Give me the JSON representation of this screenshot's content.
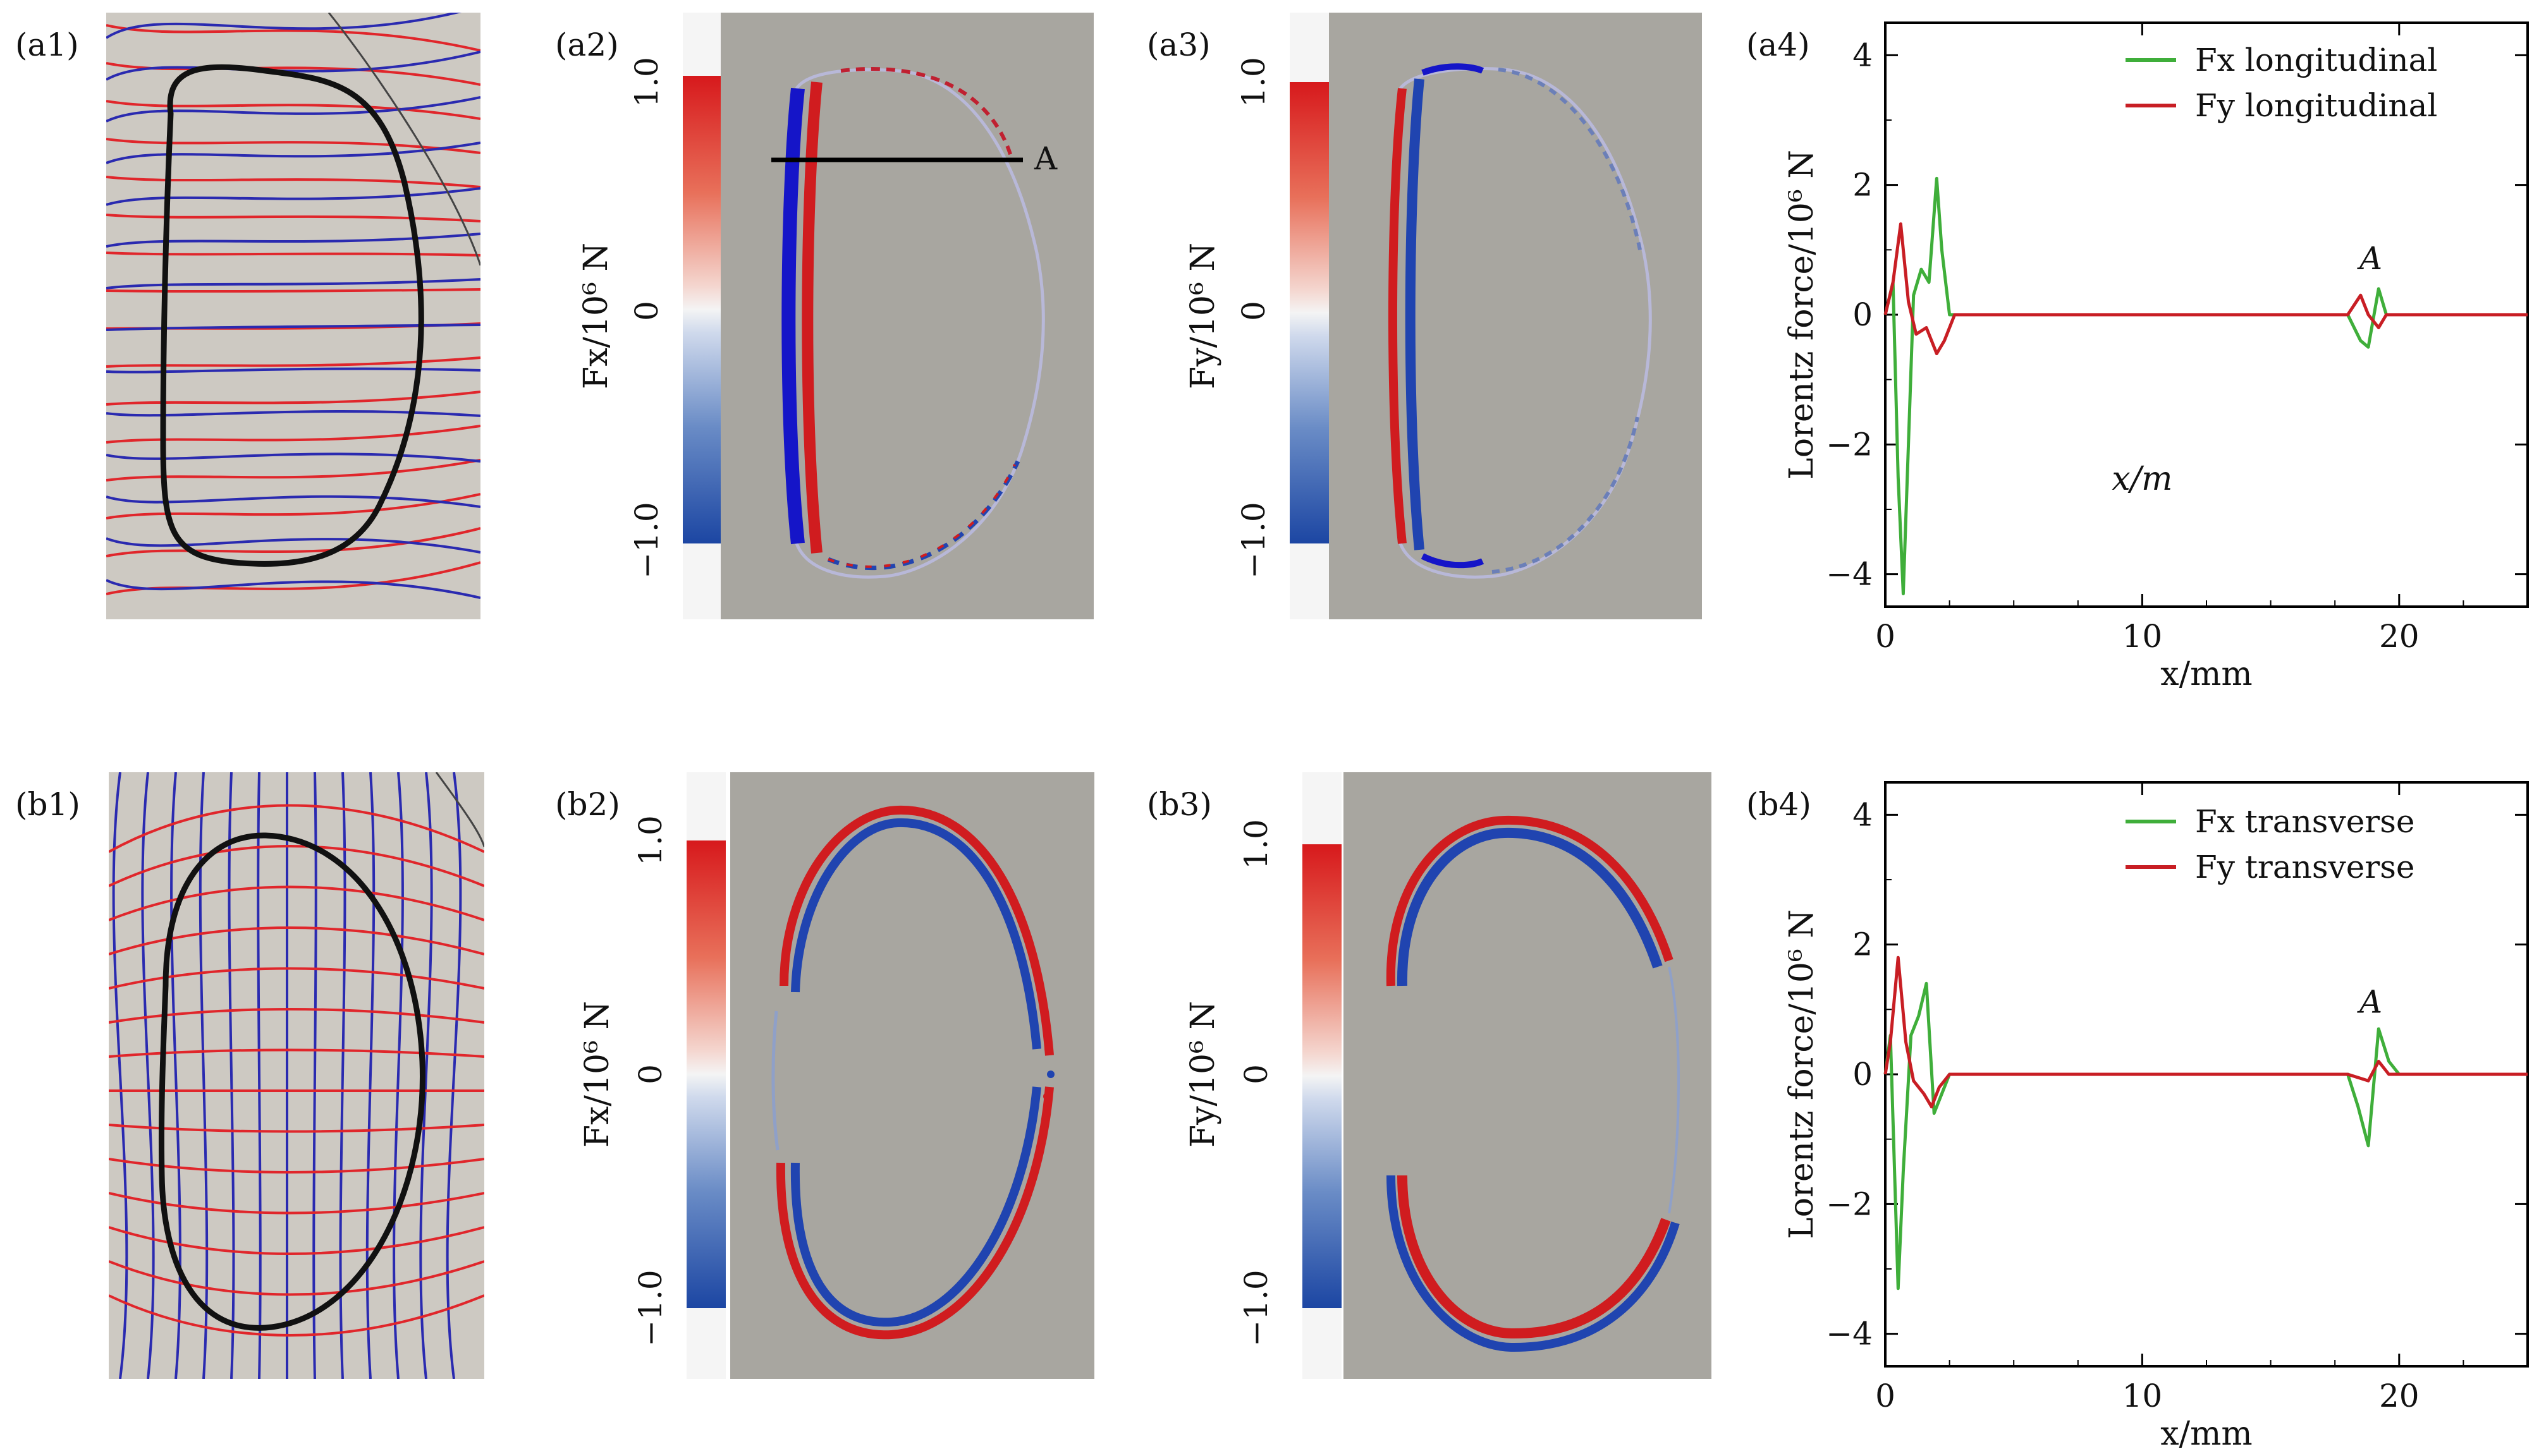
{
  "panel_labels": {
    "a1": "(a1)",
    "a2": "(a2)",
    "a3": "(a3)",
    "a4": "(a4)",
    "b1": "(b1)",
    "b2": "(b2)",
    "b3": "(b3)",
    "b4": "(b4)"
  },
  "colorbars": {
    "ticks": [
      "1.0",
      "0",
      "−1.0"
    ],
    "fx_label": "Fx/10⁶ N",
    "fy_label": "Fy/10⁶ N"
  },
  "marker_A_label": "A",
  "a4_inner_label": "x/m",
  "colors": {
    "green": "#3fae3a",
    "red": "#c81e24",
    "blue_line": "#2a2ab0",
    "red_line": "#e0262b",
    "field_gray": "#a8a6a0",
    "sketch_bg": "#cdc9c2"
  },
  "chart_data": [
    {
      "id": "a4",
      "type": "line",
      "xlabel": "x/mm",
      "ylabel": "Lorentz force/10⁶ N",
      "xlim": [
        0,
        25
      ],
      "ylim": [
        -4.5,
        4.5
      ],
      "xticks": [
        0,
        10,
        20
      ],
      "yticks": [
        -4,
        -2,
        0,
        2,
        4
      ],
      "annotation": "A",
      "series": [
        {
          "name": "Fx longitudinal",
          "color": "#3fae3a",
          "x": [
            0,
            0.3,
            0.5,
            0.7,
            0.9,
            1.1,
            1.4,
            1.7,
            2.0,
            2.2,
            2.5,
            3,
            10,
            18.0,
            18.5,
            18.8,
            19.2,
            19.5,
            20,
            25
          ],
          "y": [
            0,
            0.5,
            -2.5,
            -4.3,
            -2.0,
            0.3,
            0.7,
            0.5,
            2.1,
            1.0,
            0,
            0,
            0,
            0,
            -0.4,
            -0.5,
            0.4,
            0,
            0,
            0
          ]
        },
        {
          "name": "Fy longitudinal",
          "color": "#c81e24",
          "x": [
            0,
            0.3,
            0.6,
            0.9,
            1.2,
            1.6,
            2.0,
            2.3,
            2.7,
            3,
            10,
            18.0,
            18.5,
            18.8,
            19.2,
            19.5,
            20,
            25
          ],
          "y": [
            0,
            0.5,
            1.4,
            0.2,
            -0.3,
            -0.2,
            -0.6,
            -0.4,
            0,
            0,
            0,
            0,
            0.3,
            0,
            -0.2,
            0,
            0,
            0
          ]
        }
      ]
    },
    {
      "id": "b4",
      "type": "line",
      "xlabel": "x/mm",
      "ylabel": "Lorentz force/10⁶ N",
      "xlim": [
        0,
        25
      ],
      "ylim": [
        -4.5,
        4.5
      ],
      "xticks": [
        0,
        10,
        20
      ],
      "yticks": [
        -4,
        -2,
        0,
        2,
        4
      ],
      "annotation": "A",
      "series": [
        {
          "name": "Fx transverse",
          "color": "#3fae3a",
          "x": [
            0,
            0.2,
            0.5,
            0.7,
            1.0,
            1.3,
            1.6,
            1.9,
            2.2,
            2.5,
            3,
            10,
            18.0,
            18.4,
            18.8,
            19.2,
            19.6,
            20,
            25
          ],
          "y": [
            0,
            0.6,
            -3.3,
            -1.5,
            0.6,
            0.9,
            1.4,
            -0.6,
            -0.3,
            0,
            0,
            0,
            0,
            -0.5,
            -1.1,
            0.7,
            0.2,
            0,
            0
          ]
        },
        {
          "name": "Fy transverse",
          "color": "#c81e24",
          "x": [
            0,
            0.2,
            0.5,
            0.8,
            1.1,
            1.5,
            1.8,
            2.1,
            2.5,
            3,
            10,
            18.0,
            18.8,
            19.2,
            19.6,
            20,
            25
          ],
          "y": [
            0,
            0.5,
            1.8,
            0.5,
            -0.1,
            -0.3,
            -0.5,
            -0.2,
            0,
            0,
            0,
            0,
            -0.1,
            0.2,
            0,
            0,
            0
          ]
        }
      ]
    }
  ]
}
